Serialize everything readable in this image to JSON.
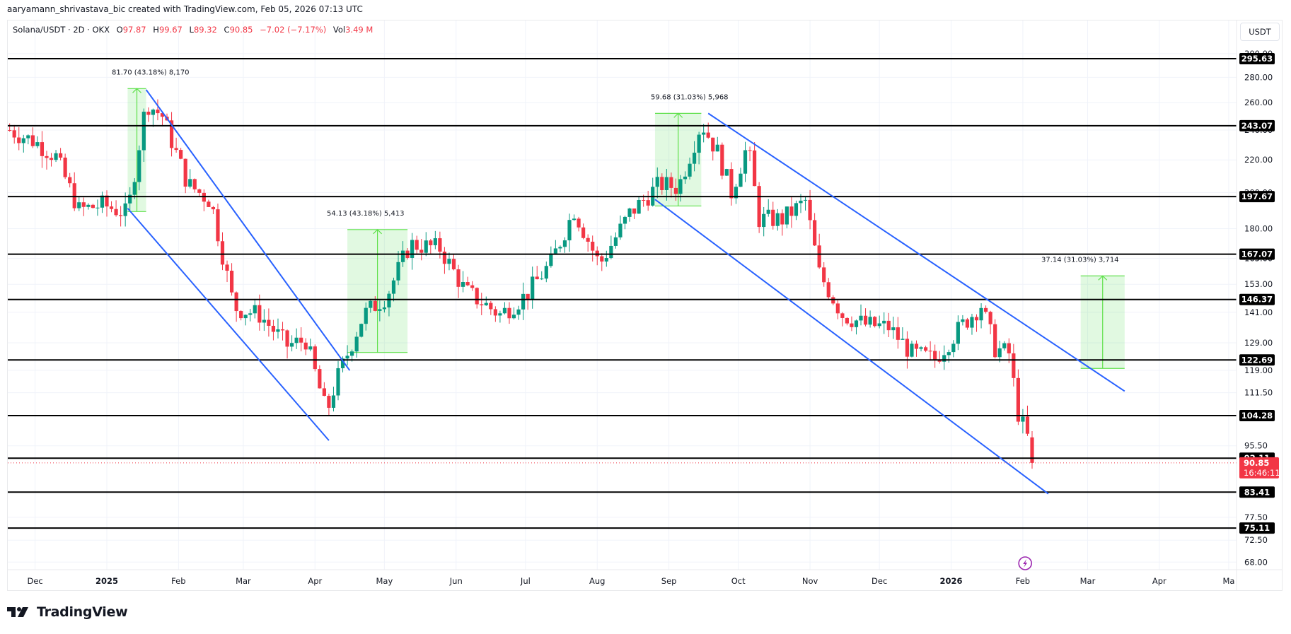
{
  "header": {
    "credit": "aaryamann_shrivastava_bic created with TradingView.com, Feb 05, 2026 07:13 UTC"
  },
  "legend": {
    "symbol": "Solana/USDT · 2D · OKX",
    "open_label": "O",
    "open": "97.87",
    "high_label": "H",
    "high": "99.67",
    "low_label": "L",
    "low": "89.32",
    "close_label": "C",
    "close": "90.85",
    "change": "−7.02 (−7.17%)",
    "vol_label": "Vol",
    "vol": "3.49 M"
  },
  "price_scale": {
    "currency": "USDT",
    "ticks": [
      "300.00",
      "280.00",
      "260.00",
      "240.00",
      "220.00",
      "200.00",
      "180.00",
      "165.00",
      "153.00",
      "141.00",
      "129.00",
      "119.00",
      "111.50",
      "95.50",
      "77.50",
      "72.50",
      "68.00"
    ]
  },
  "current_price": {
    "value": "90.85",
    "countdown": "16:46:11",
    "color": "#f23645"
  },
  "branding": {
    "logo_text": "TradingView"
  },
  "colors": {
    "up": "#089981",
    "down": "#f23645",
    "channel": "#2962ff",
    "measure": "#4caf50",
    "level": "#000000",
    "event_icon": "#9c27b0"
  },
  "chart_data": {
    "type": "candlestick",
    "title": "Solana/USDT · 2D · OKX",
    "xlabel": "",
    "ylabel": "USDT",
    "yscale": "log",
    "ylim": [
      66,
      305
    ],
    "x_ticks": [
      "Dec",
      "2025",
      "Feb",
      "Mar",
      "Apr",
      "May",
      "Jun",
      "Jul",
      "Aug",
      "Sep",
      "Oct",
      "Nov",
      "Dec",
      "2026",
      "Feb",
      "Mar",
      "Apr",
      "Ma"
    ],
    "horizontal_levels": [
      295.63,
      243.07,
      197.67,
      167.07,
      146.37,
      122.69,
      104.28,
      92.11,
      83.41,
      75.11
    ],
    "last": {
      "open": 97.87,
      "high": 99.67,
      "low": 89.32,
      "close": 90.85,
      "change": -7.02,
      "change_pct": -7.17
    },
    "price_path_close": [
      {
        "date": "2024-11-20",
        "close": 240
      },
      {
        "date": "2024-12-01",
        "close": 232
      },
      {
        "date": "2024-12-10",
        "close": 222
      },
      {
        "date": "2024-12-20",
        "close": 190
      },
      {
        "date": "2024-12-30",
        "close": 193
      },
      {
        "date": "2025-01-10",
        "close": 188
      },
      {
        "date": "2025-01-18",
        "close": 260
      },
      {
        "date": "2025-01-25",
        "close": 250
      },
      {
        "date": "2025-02-05",
        "close": 205
      },
      {
        "date": "2025-02-15",
        "close": 195
      },
      {
        "date": "2025-02-25",
        "close": 143
      },
      {
        "date": "2025-03-08",
        "close": 140
      },
      {
        "date": "2025-03-20",
        "close": 128
      },
      {
        "date": "2025-03-28",
        "close": 130
      },
      {
        "date": "2025-04-06",
        "close": 105
      },
      {
        "date": "2025-04-10",
        "close": 115
      },
      {
        "date": "2025-04-22",
        "close": 140
      },
      {
        "date": "2025-05-02",
        "close": 148
      },
      {
        "date": "2025-05-12",
        "close": 172
      },
      {
        "date": "2025-05-25",
        "close": 170
      },
      {
        "date": "2025-06-05",
        "close": 150
      },
      {
        "date": "2025-06-20",
        "close": 140
      },
      {
        "date": "2025-07-01",
        "close": 148
      },
      {
        "date": "2025-07-12",
        "close": 163
      },
      {
        "date": "2025-07-22",
        "close": 190
      },
      {
        "date": "2025-08-02",
        "close": 162
      },
      {
        "date": "2025-08-15",
        "close": 188
      },
      {
        "date": "2025-08-28",
        "close": 205
      },
      {
        "date": "2025-09-05",
        "close": 203
      },
      {
        "date": "2025-09-15",
        "close": 245
      },
      {
        "date": "2025-09-22",
        "close": 225
      },
      {
        "date": "2025-09-28",
        "close": 200
      },
      {
        "date": "2025-10-05",
        "close": 230
      },
      {
        "date": "2025-10-10",
        "close": 185
      },
      {
        "date": "2025-10-20",
        "close": 185
      },
      {
        "date": "2025-10-30",
        "close": 195
      },
      {
        "date": "2025-11-05",
        "close": 158
      },
      {
        "date": "2025-11-15",
        "close": 140
      },
      {
        "date": "2025-11-25",
        "close": 136
      },
      {
        "date": "2025-12-05",
        "close": 135
      },
      {
        "date": "2025-12-15",
        "close": 125
      },
      {
        "date": "2025-12-25",
        "close": 123
      },
      {
        "date": "2026-01-05",
        "close": 135
      },
      {
        "date": "2026-01-14",
        "close": 144
      },
      {
        "date": "2026-01-20",
        "close": 127
      },
      {
        "date": "2026-01-26",
        "close": 125
      },
      {
        "date": "2026-01-30",
        "close": 105
      },
      {
        "date": "2026-02-03",
        "close": 97.87
      },
      {
        "date": "2026-02-05",
        "close": 90.85
      }
    ],
    "annotations": [
      {
        "type": "price_range",
        "text": "81.70 (43.18%) 8,170",
        "from": 189.2,
        "to": 270.9
      },
      {
        "type": "price_range",
        "text": "54.13 (43.18%) 5,413",
        "from": 125.4,
        "to": 179.5
      },
      {
        "type": "price_range",
        "text": "59.68 (31.03%) 5,968",
        "from": 192.3,
        "to": 252.0
      },
      {
        "type": "price_range",
        "text": "37.14 (31.03%) 3,714",
        "from": 119.7,
        "to": 156.8
      }
    ],
    "trendlines": [
      {
        "name": "channel-1-upper",
        "from": {
          "date": "2025-01-18",
          "price": 270
        },
        "to": {
          "date": "2025-04-16",
          "price": 119
        }
      },
      {
        "name": "channel-1-lower",
        "from": {
          "date": "2025-01-10",
          "price": 191
        },
        "to": {
          "date": "2025-04-07",
          "price": 97
        }
      },
      {
        "name": "channel-2-upper",
        "from": {
          "date": "2025-09-18",
          "price": 252
        },
        "to": {
          "date": "2026-03-17",
          "price": 112
        }
      },
      {
        "name": "channel-2-lower",
        "from": {
          "date": "2025-08-26",
          "price": 196
        },
        "to": {
          "date": "2026-02-12",
          "price": 83
        }
      }
    ]
  }
}
